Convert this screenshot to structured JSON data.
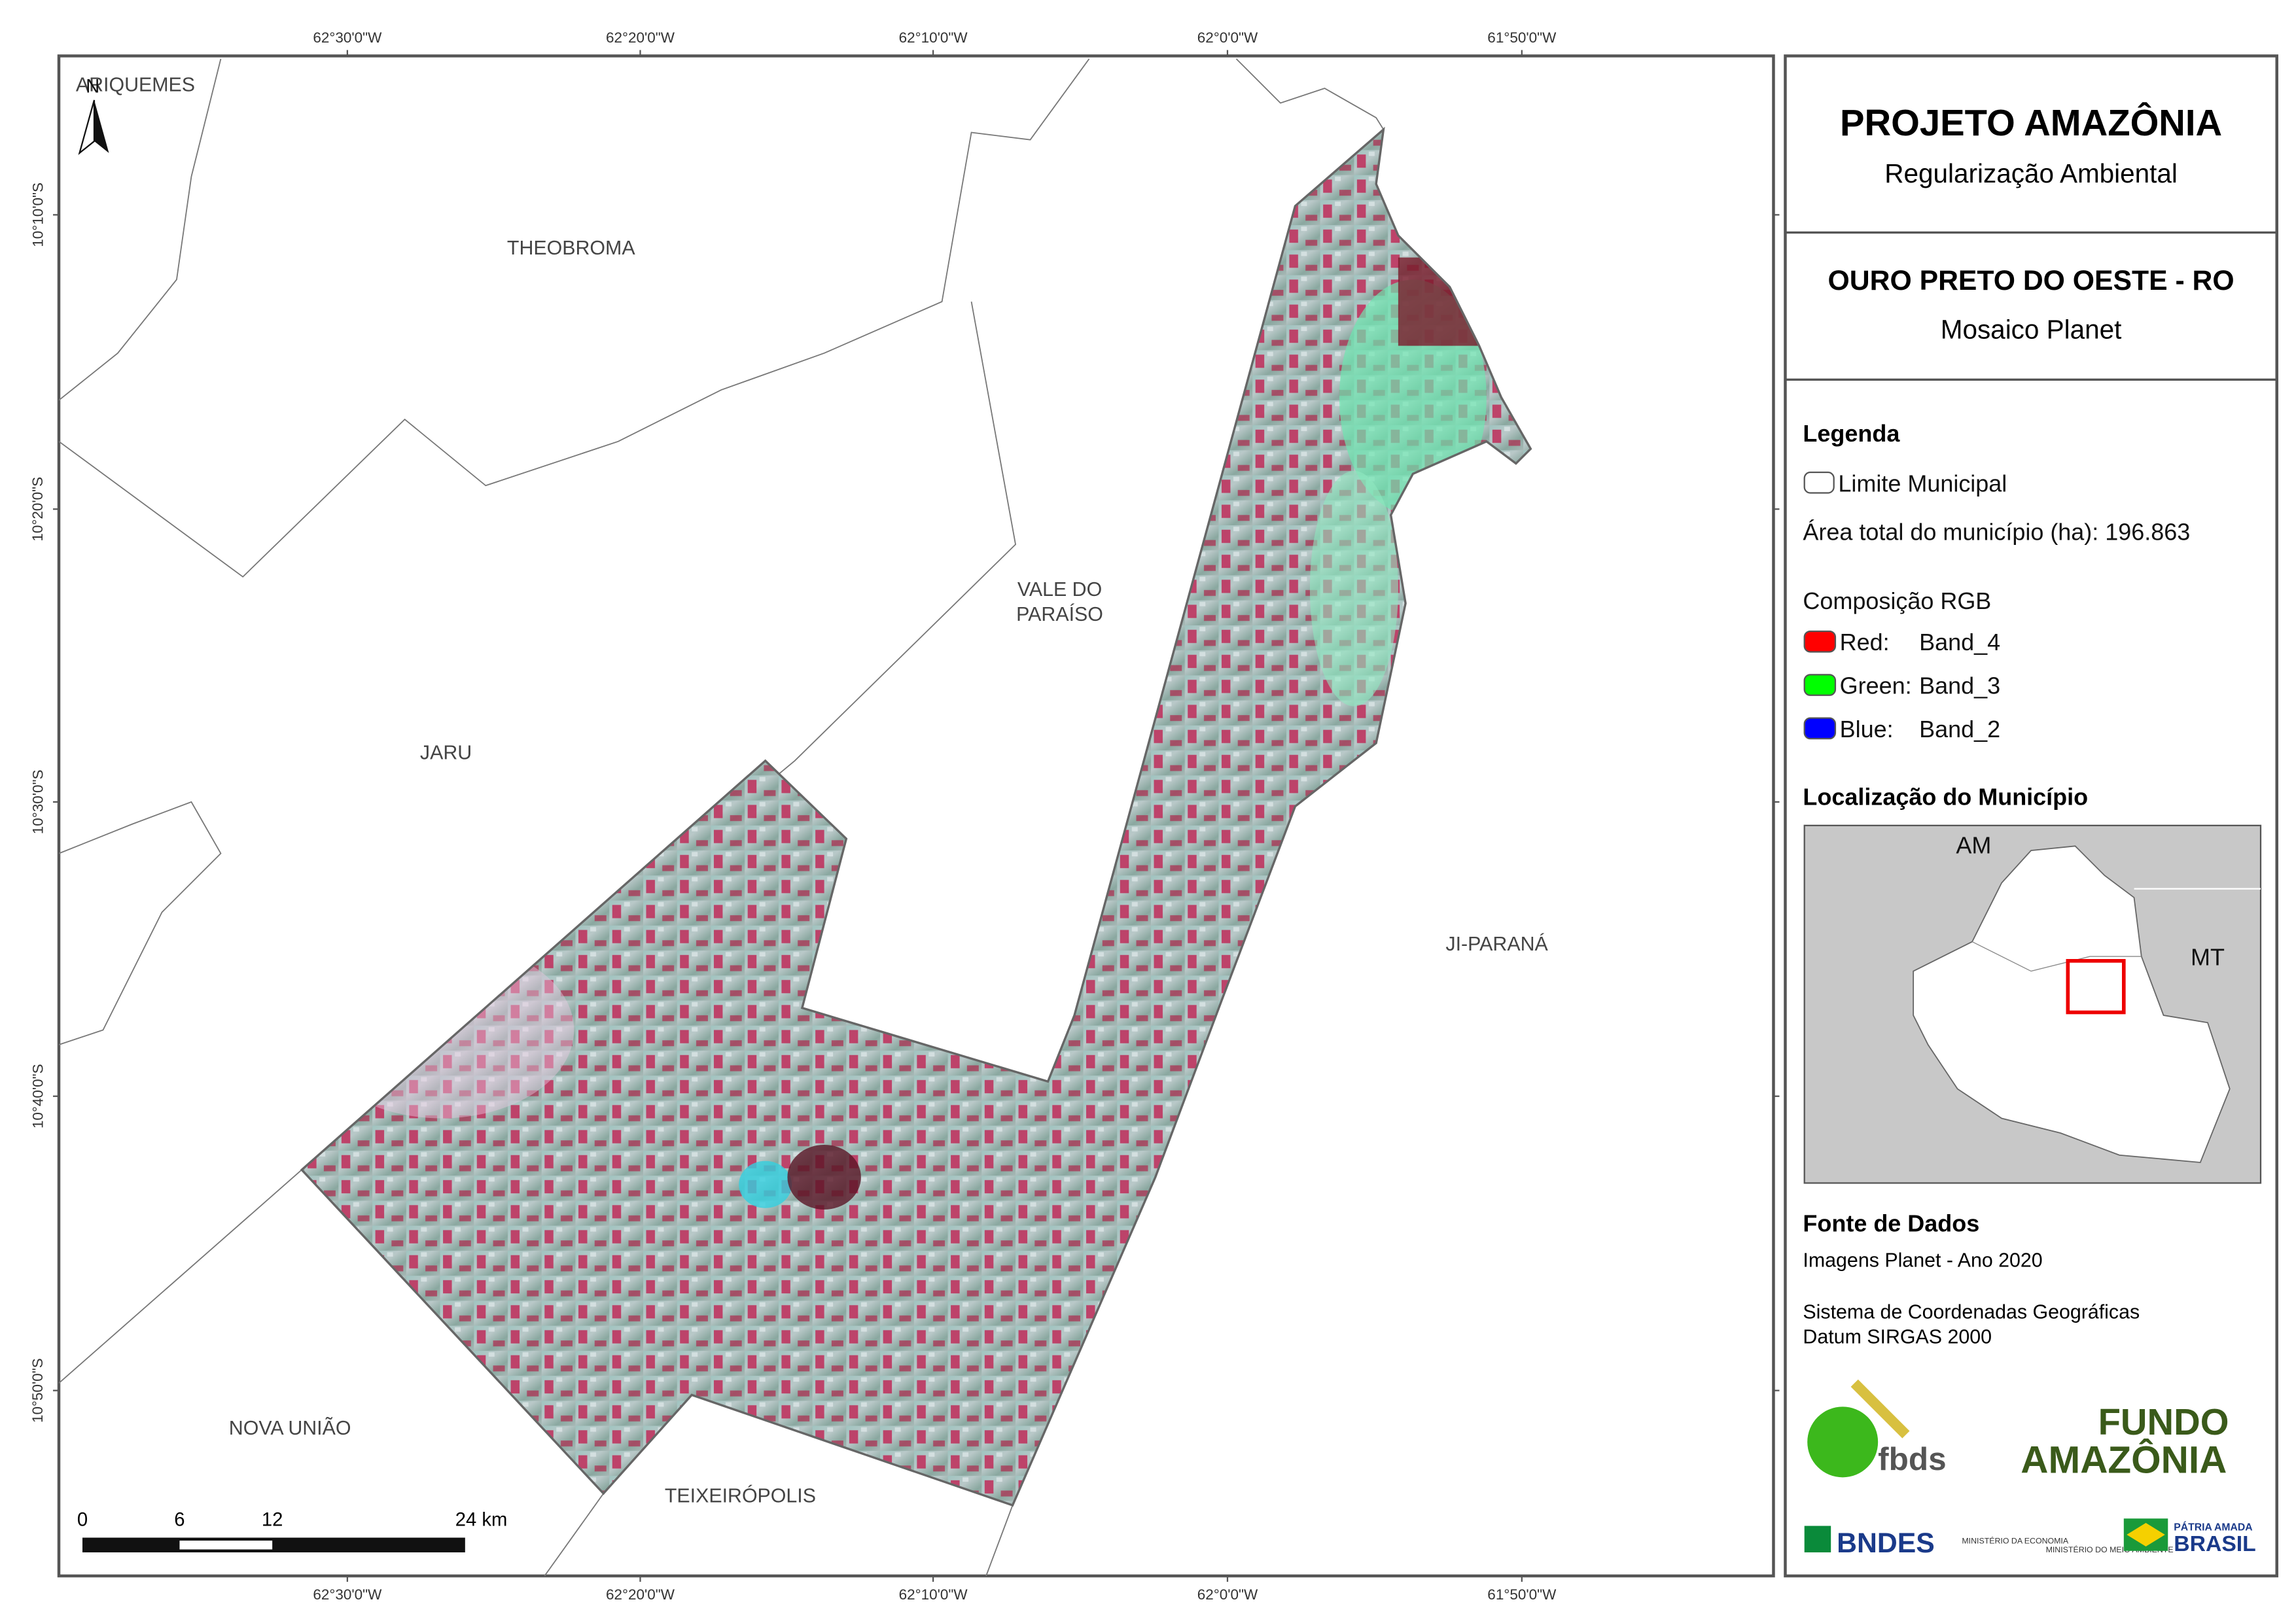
{
  "map": {
    "top_longitudes": [
      "62°30'0\"W",
      "62°20'0\"W",
      "62°10'0\"W",
      "62°0'0\"W",
      "61°50'0\"W"
    ],
    "bottom_longitudes": [
      "62°30'0\"W",
      "62°20'0\"W",
      "62°10'0\"W",
      "62°0'0\"W",
      "61°50'0\"W"
    ],
    "left_latitudes": [
      "10°10'0\"S",
      "10°20'0\"S",
      "10°30'0\"S",
      "10°40'0\"S",
      "10°50'0\"S"
    ],
    "north": "N",
    "places": [
      [
        "ARIQUEMES"
      ],
      [
        "THEOBROMA"
      ],
      [
        "VALE DO",
        "PARAÍSO"
      ],
      [
        "JARU"
      ],
      [
        "JI-PARANÁ"
      ],
      [
        "NOVA UNIÃO"
      ],
      [
        "TEIXEIRÓPOLIS"
      ]
    ],
    "scale": [
      "0",
      "6",
      "12",
      "24 km"
    ]
  },
  "panel": {
    "title": "PROJETO AMAZÔNIA",
    "subtitle": "Regularização Ambiental",
    "region": "OURO PRETO DO OESTE - RO",
    "region_subtitle": "Mosaico Planet",
    "legend": {
      "title": "Legenda",
      "boundary": "Limite Municipal",
      "area": "Área total do município (ha): 196.863",
      "rgb_title": "Composição RGB",
      "bands": [
        {
          "label": "Red:",
          "band": "Band_4",
          "color": "#ff0000"
        },
        {
          "label": "Green:",
          "band": "Band_3",
          "color": "#00ff00"
        },
        {
          "label": "Blue:",
          "band": "Band_2",
          "color": "#0000ff"
        }
      ]
    },
    "location": {
      "title": "Localização do Município",
      "labels": [
        "AM",
        "MT"
      ]
    },
    "sources": {
      "title": "Fonte de Dados",
      "lines": [
        "Imagens Planet - Ano 2020",
        "Sistema de Coordenadas Geográficas",
        "Datum SIRGAS 2000"
      ]
    },
    "logos": [
      "fbds",
      "FUNDO",
      "AMAZÔNIA",
      "BNDES",
      "MINISTÉRIO DA ECONOMIA",
      "MINISTÉRIO DO MEIO AMBIENTE",
      "PÁTRIA AMADA",
      "BRASIL"
    ]
  }
}
